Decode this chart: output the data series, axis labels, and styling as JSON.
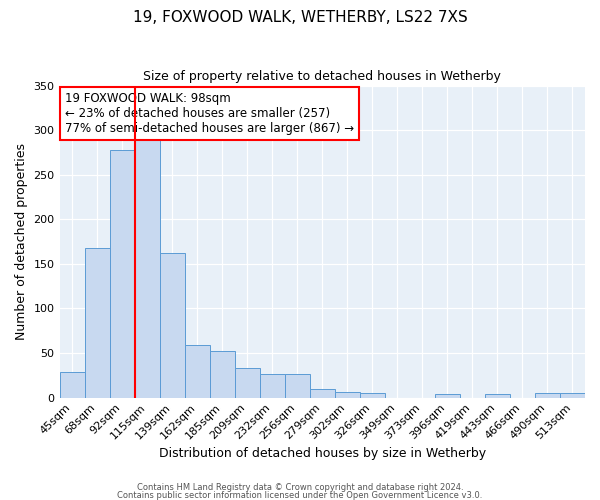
{
  "title": "19, FOXWOOD WALK, WETHERBY, LS22 7XS",
  "subtitle": "Size of property relative to detached houses in Wetherby",
  "xlabel": "Distribution of detached houses by size in Wetherby",
  "ylabel": "Number of detached properties",
  "bar_labels": [
    "45sqm",
    "68sqm",
    "92sqm",
    "115sqm",
    "139sqm",
    "162sqm",
    "185sqm",
    "209sqm",
    "232sqm",
    "256sqm",
    "279sqm",
    "302sqm",
    "326sqm",
    "349sqm",
    "373sqm",
    "396sqm",
    "419sqm",
    "443sqm",
    "466sqm",
    "490sqm",
    "513sqm"
  ],
  "bar_values": [
    29,
    168,
    278,
    291,
    162,
    59,
    52,
    33,
    26,
    26,
    10,
    6,
    5,
    0,
    0,
    4,
    0,
    4,
    0,
    5,
    5
  ],
  "bar_color": "#c8d9f0",
  "bar_edge_color": "#5b9bd5",
  "vline_color": "red",
  "vline_pos": 2.5,
  "annotation_title": "19 FOXWOOD WALK: 98sqm",
  "annotation_line1": "← 23% of detached houses are smaller (257)",
  "annotation_line2": "77% of semi-detached houses are larger (867) →",
  "annotation_box_color": "white",
  "annotation_box_edge": "red",
  "ylim": [
    0,
    350
  ],
  "yticks": [
    0,
    50,
    100,
    150,
    200,
    250,
    300,
    350
  ],
  "footer1": "Contains HM Land Registry data © Crown copyright and database right 2024.",
  "footer2": "Contains public sector information licensed under the Open Government Licence v3.0.",
  "background_color": "#e8f0f8",
  "fig_background": "#ffffff"
}
